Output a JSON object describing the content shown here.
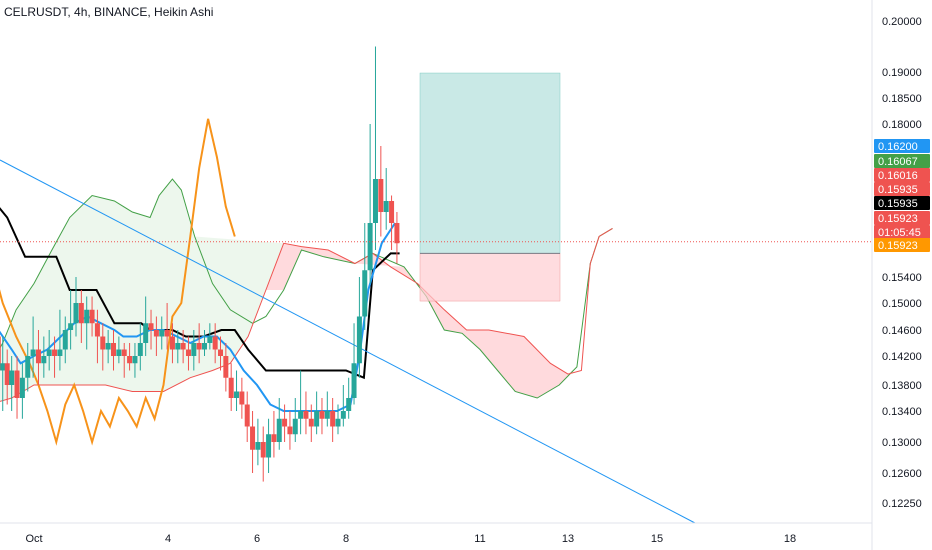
{
  "header": {
    "title": "CELRUSDT, 4h, BINANCE, Heikin Ashi"
  },
  "colors": {
    "up": "#26a69a",
    "down": "#ef5350",
    "kijun": "#000000",
    "tenkan": "#2196f3",
    "chikou": "#f7931a",
    "trendline": "#2196f3",
    "cloud_up": "#e8f5e9",
    "cloud_down": "#ffcdd2"
  },
  "chart_data": {
    "type": "candlestick",
    "x_ticks": [
      "Oct",
      "4",
      "6",
      "8",
      "11",
      "13",
      "15",
      "18"
    ],
    "y_ticks": [
      "0.20000",
      "0.19000",
      "0.18500",
      "0.18000",
      "0.15400",
      "0.15000",
      "0.14600",
      "0.14200",
      "0.13800",
      "0.13400",
      "0.13000",
      "0.12600",
      "0.12250"
    ],
    "price_tags": [
      {
        "text": "0.16200",
        "bg": "#2196f3"
      },
      {
        "text": "0.16067",
        "bg": "#43a047"
      },
      {
        "text": "0.16016",
        "bg": "#ef5350"
      },
      {
        "text": "0.15935",
        "bg": "#ef5350"
      },
      {
        "text": "0.15935",
        "bg": "#000000"
      },
      {
        "text": "0.15923",
        "bg": "#ef5350"
      },
      {
        "text": "01:05:45",
        "bg": "#ef5350"
      },
      {
        "text": "0.15923",
        "bg": "#ff9800"
      }
    ],
    "last_price": 0.15923,
    "position": {
      "entry": 0.1575,
      "target": 0.1898,
      "stop": 0.1503
    }
  }
}
